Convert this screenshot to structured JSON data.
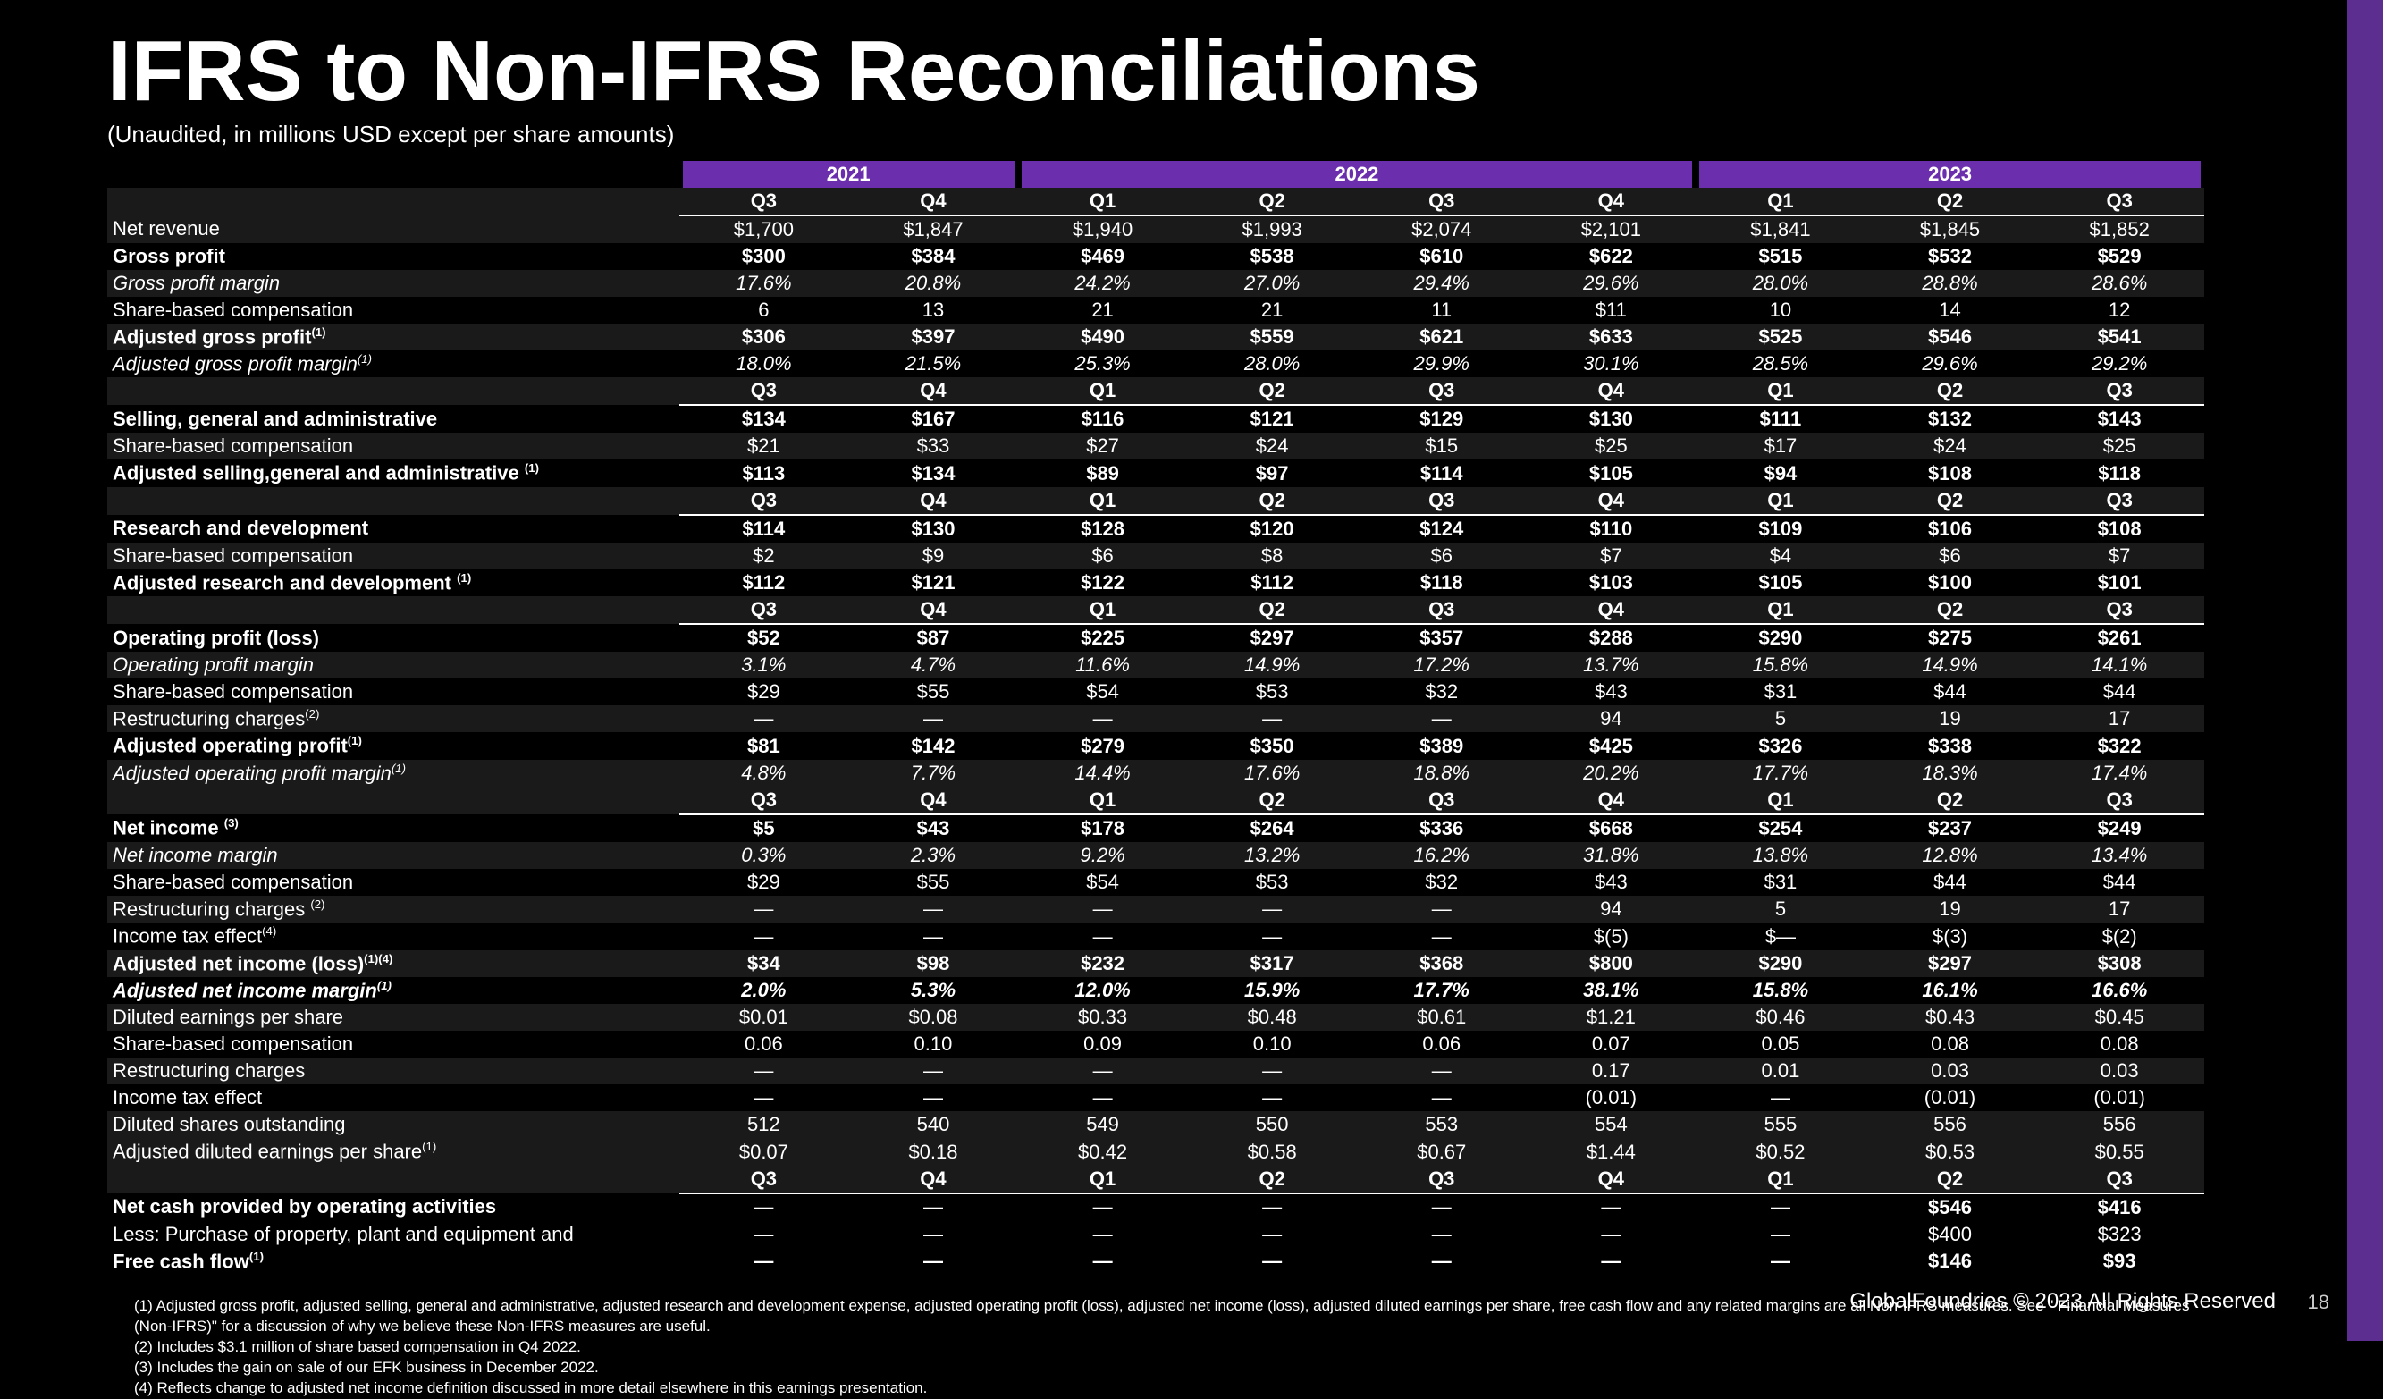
{
  "title": "IFRS to Non-IFRS Reconciliations",
  "subtitle": "(Unaudited, in millions USD except per share amounts)",
  "years": [
    {
      "label": "2021",
      "span": 2
    },
    {
      "label": "2022",
      "span": 4
    },
    {
      "label": "2023",
      "span": 3
    }
  ],
  "quarters": [
    "Q3",
    "Q4",
    "Q1",
    "Q2",
    "Q3",
    "Q4",
    "Q1",
    "Q2",
    "Q3"
  ],
  "blocks": [
    {
      "type": "q"
    },
    {
      "rows": [
        {
          "label": "Net revenue",
          "v": [
            "$1,700",
            "$1,847",
            "$1,940",
            "$1,993",
            "$2,074",
            "$2,101",
            "$1,841",
            "$1,845",
            "$1,852"
          ],
          "sect": true
        },
        {
          "label": "Gross profit",
          "v": [
            "$300",
            "$384",
            "$469",
            "$538",
            "$610",
            "$622",
            "$515",
            "$532",
            "$529"
          ],
          "bold": true
        },
        {
          "label": "Gross profit margin",
          "v": [
            "17.6%",
            "20.8%",
            "24.2%",
            "27.0%",
            "29.4%",
            "29.6%",
            "28.0%",
            "28.8%",
            "28.6%"
          ],
          "italic": true,
          "sect": true
        },
        {
          "label": "Share-based compensation",
          "v": [
            "6",
            "13",
            "21",
            "21",
            "11",
            "$11",
            "10",
            "14",
            "12"
          ]
        },
        {
          "label": "Adjusted gross profit",
          "sup": "(1)",
          "v": [
            "$306",
            "$397",
            "$490",
            "$559",
            "$621",
            "$633",
            "$525",
            "$546",
            "$541"
          ],
          "bold": true,
          "sect": true
        },
        {
          "label": "Adjusted gross profit  margin",
          "sup": "(1)",
          "v": [
            "18.0%",
            "21.5%",
            "25.3%",
            "28.0%",
            "29.9%",
            "30.1%",
            "28.5%",
            "29.6%",
            "29.2%"
          ],
          "italic": true
        }
      ]
    },
    {
      "type": "q"
    },
    {
      "rows": [
        {
          "label": "Selling, general and administrative",
          "v": [
            "$134",
            "$167",
            "$116",
            "$121",
            "$129",
            "$130",
            "$111",
            "$132",
            "$143"
          ],
          "bold": true
        },
        {
          "label": "Share-based compensation",
          "v": [
            "$21",
            "$33",
            "$27",
            "$24",
            "$15",
            "$25",
            "$17",
            "$24",
            "$25"
          ],
          "sect": true
        },
        {
          "label": "Adjusted selling,general and administrative ",
          "sup": "(1)",
          "v": [
            "$113",
            "$134",
            "$89",
            "$97",
            "$114",
            "$105",
            "$94",
            "$108",
            "$118"
          ],
          "bold": true
        }
      ]
    },
    {
      "type": "q"
    },
    {
      "rows": [
        {
          "label": "Research and development",
          "v": [
            "$114",
            "$130",
            "$128",
            "$120",
            "$124",
            "$110",
            "$109",
            "$106",
            "$108"
          ],
          "bold": true
        },
        {
          "label": "Share-based compensation",
          "v": [
            "$2",
            "$9",
            "$6",
            "$8",
            "$6",
            "$7",
            "$4",
            "$6",
            "$7"
          ],
          "sect": true
        },
        {
          "label": "Adjusted research and development ",
          "sup": "(1)",
          "v": [
            "$112",
            "$121",
            "$122",
            "$112",
            "$118",
            "$103",
            "$105",
            "$100",
            "$101"
          ],
          "bold": true
        }
      ]
    },
    {
      "type": "q"
    },
    {
      "rows": [
        {
          "label": "Operating profit (loss)",
          "v": [
            "$52",
            "$87",
            "$225",
            "$297",
            "$357",
            "$288",
            "$290",
            "$275",
            "$261"
          ],
          "bold": true
        },
        {
          "label": "Operating profit margin",
          "v": [
            "3.1%",
            "4.7%",
            "11.6%",
            "14.9%",
            "17.2%",
            "13.7%",
            "15.8%",
            "14.9%",
            "14.1%"
          ],
          "italic": true,
          "sect": true
        },
        {
          "label": "Share-based compensation",
          "v": [
            "$29",
            "$55",
            "$54",
            "$53",
            "$32",
            "$43",
            "$31",
            "$44",
            "$44"
          ]
        },
        {
          "label": "Restructuring charges",
          "sup": "(2)",
          "v": [
            "—",
            "—",
            "—",
            "—",
            "—",
            "94",
            "5",
            "19",
            "17"
          ],
          "sect": true
        },
        {
          "label": "Adjusted operating profit",
          "sup": "(1)",
          "v": [
            "$81",
            "$142",
            "$279",
            "$350",
            "$389",
            "$425",
            "$326",
            "$338",
            "$322"
          ],
          "bold": true
        },
        {
          "label": "Adjusted operating profit margin",
          "sup": "(1)",
          "v": [
            "4.8%",
            "7.7%",
            "14.4%",
            "17.6%",
            "18.8%",
            "20.2%",
            "17.7%",
            "18.3%",
            "17.4%"
          ],
          "italic": true,
          "sect": true
        }
      ]
    },
    {
      "type": "q"
    },
    {
      "rows": [
        {
          "label": "Net income ",
          "sup": "(3)",
          "v": [
            "$5",
            "$43",
            "$178",
            "$264",
            "$336",
            "$668",
            "$254",
            "$237",
            "$249"
          ],
          "bold": true
        },
        {
          "label": "Net income  margin",
          "v": [
            "0.3%",
            "2.3%",
            "9.2%",
            "13.2%",
            "16.2%",
            "31.8%",
            "13.8%",
            "12.8%",
            "13.4%"
          ],
          "italic": true,
          "sect": true
        },
        {
          "label": "Share-based compensation",
          "v": [
            "$29",
            "$55",
            "$54",
            "$53",
            "$32",
            "$43",
            "$31",
            "$44",
            "$44"
          ]
        },
        {
          "label": "Restructuring charges ",
          "sup": "(2)",
          "v": [
            "—",
            "—",
            "—",
            "—",
            "—",
            "94",
            "5",
            "19",
            "17"
          ],
          "sect": true
        },
        {
          "label": "Income tax effect",
          "sup": "(4)",
          "v": [
            "—",
            "—",
            "—",
            "—",
            "—",
            "$(5)",
            "$—",
            "$(3)",
            "$(2)"
          ]
        },
        {
          "label": "Adjusted net income (loss)",
          "sup": "(1)(4)",
          "v": [
            "$34",
            "$98",
            "$232",
            "$317",
            "$368",
            "$800",
            "$290",
            "$297",
            "$308"
          ],
          "bold": true,
          "sect": true
        },
        {
          "label": "Adjusted net income  margin",
          "sup": "(1)",
          "v": [
            "2.0%",
            "5.3%",
            "12.0%",
            "15.9%",
            "17.7%",
            "38.1%",
            "15.8%",
            "16.1%",
            "16.6%"
          ],
          "bold": true,
          "italic": true
        },
        {
          "label": "Diluted earnings  per share",
          "v": [
            "$0.01",
            "$0.08",
            "$0.33",
            "$0.48",
            "$0.61",
            "$1.21",
            "$0.46",
            "$0.43",
            "$0.45"
          ],
          "sect": true
        },
        {
          "label": "Share-based compensation",
          "v": [
            "0.06",
            "0.10",
            "0.09",
            "0.10",
            "0.06",
            "0.07",
            "0.05",
            "0.08",
            "0.08"
          ]
        },
        {
          "label": "Restructuring charges",
          "v": [
            "—",
            "—",
            "—",
            "—",
            "—",
            "0.17",
            "0.01",
            "0.03",
            "0.03"
          ],
          "sect": true
        },
        {
          "label": "Income tax effect",
          "v": [
            "—",
            "—",
            "—",
            "—",
            "—",
            "(0.01)",
            "—",
            "(0.01)",
            "(0.01)"
          ]
        },
        {
          "label": "Diluted shares outstanding",
          "v": [
            "512",
            "540",
            "549",
            "550",
            "553",
            "554",
            "555",
            "556",
            "556"
          ],
          "sect": true
        },
        {
          "label": "Adjusted diluted earnings  per share",
          "sup": "(1)",
          "v": [
            "$0.07",
            "$0.18",
            "$0.42",
            "$0.58",
            "$0.67",
            "$1.44",
            "$0.52",
            "$0.53",
            "$0.55"
          ],
          "sect": true
        }
      ]
    },
    {
      "type": "q"
    },
    {
      "rows": [
        {
          "label": "Net cash provided by operating activities",
          "v": [
            "—",
            "—",
            "—",
            "—",
            "—",
            "—",
            "—",
            "$546",
            "$416"
          ],
          "bold": true
        },
        {
          "label": "Less:  Purchase of  property, plant and equipment and",
          "v": [
            "—",
            "—",
            "—",
            "—",
            "—",
            "—",
            "—",
            "$400",
            "$323"
          ]
        },
        {
          "label": "Free cash flow",
          "sup": "(1)",
          "v": [
            "—",
            "—",
            "—",
            "—",
            "—",
            "—",
            "—",
            "$146",
            "$93"
          ],
          "bold": true
        }
      ]
    }
  ],
  "footnotes": [
    "(1) Adjusted gross profit, adjusted selling, general and administrative, adjusted research and development expense, adjusted operating profit (loss), adjusted net income (loss), adjusted diluted earnings per share, free cash flow and any related margins are all Non-IFRS measures. See  \" Financial Measures (Non-IFRS)\" for a discussion of why we believe these Non-IFRS measures are useful.",
    "(2) Includes $3.1 million of share based compensation in Q4 2022.",
    "(3) Includes the gain on sale of our EFK business in December 2022.",
    "(4) Reflects change to adjusted net income definition discussed in more detail elsewhere in this earnings presentation."
  ],
  "footer": "GlobalFoundries © 2023 All Rights Reserved",
  "page": "18"
}
